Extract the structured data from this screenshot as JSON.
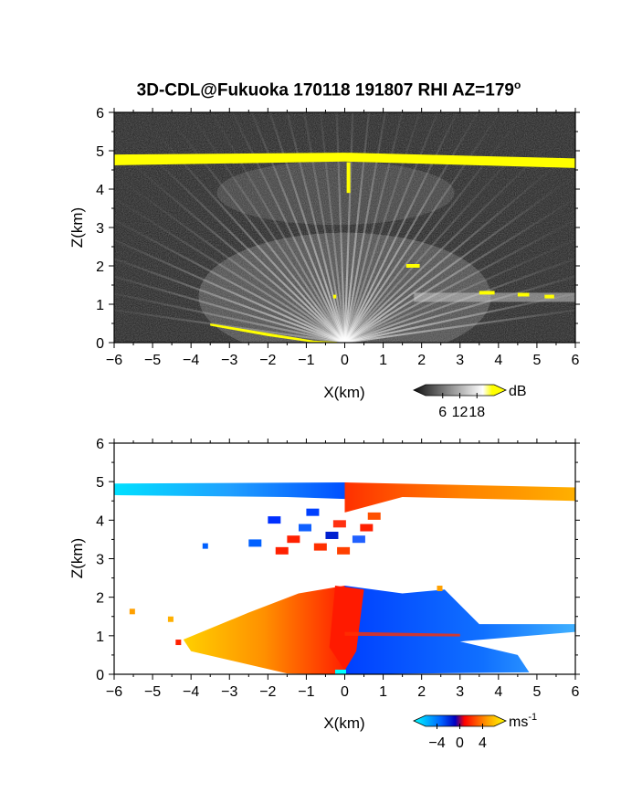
{
  "figure": {
    "title": "3D-CDL@Fukuoka 170118 191807 RHI AZ=179",
    "title_suffix": "o"
  },
  "chart_data": [
    {
      "type": "heatmap",
      "quantity": "dB",
      "xlabel": "X(km)",
      "ylabel": "Z(km)",
      "xlim": [
        -6,
        6
      ],
      "ylim": [
        0,
        6
      ],
      "x_ticks": [
        "-6",
        "-5",
        "-4",
        "-3",
        "-2",
        "-1",
        "0",
        "1",
        "2",
        "3",
        "4",
        "5",
        "6"
      ],
      "y_ticks": [
        "0",
        "1",
        "2",
        "3",
        "4",
        "5",
        "6"
      ],
      "colorbar": {
        "unit": "dB",
        "ticks": [
          "6",
          "12",
          "18"
        ],
        "range": [
          0,
          24
        ]
      },
      "features": [
        {
          "label": "strong layer",
          "x": [
            -6,
            6
          ],
          "z": [
            4.65,
            4.85
          ],
          "value_db": 20
        },
        {
          "label": "surface return",
          "x": [
            -3.5,
            0
          ],
          "z": [
            0,
            0.5
          ],
          "value_db": 20
        }
      ]
    },
    {
      "type": "heatmap",
      "quantity": "ms-1",
      "xlabel": "X(km)",
      "ylabel": "Z(km)",
      "xlim": [
        -6,
        6
      ],
      "ylim": [
        0,
        6
      ],
      "x_ticks": [
        "-6",
        "-5",
        "-4",
        "-3",
        "-2",
        "-1",
        "0",
        "1",
        "2",
        "3",
        "4",
        "5",
        "6"
      ],
      "y_ticks": [
        "0",
        "1",
        "2",
        "3",
        "4",
        "5",
        "6"
      ],
      "colorbar": {
        "unit": "ms",
        "unit_exponent": "-1",
        "ticks": [
          "-4",
          "0",
          "4"
        ],
        "range": [
          -6,
          6
        ]
      },
      "features": [
        {
          "label": "upper layer negative",
          "x": [
            -6,
            0
          ],
          "z": [
            4.6,
            4.95
          ],
          "value_ms": -4
        },
        {
          "label": "upper layer positive",
          "x": [
            0,
            6
          ],
          "z": [
            4.5,
            4.95
          ],
          "value_ms": 3
        },
        {
          "label": "lower layer positive",
          "x": [
            -4,
            0
          ],
          "z": [
            0,
            2.4
          ],
          "value_ms": 3
        },
        {
          "label": "lower layer negative",
          "x": [
            0,
            6
          ],
          "z": [
            0,
            2.4
          ],
          "value_ms": -3
        }
      ]
    }
  ]
}
